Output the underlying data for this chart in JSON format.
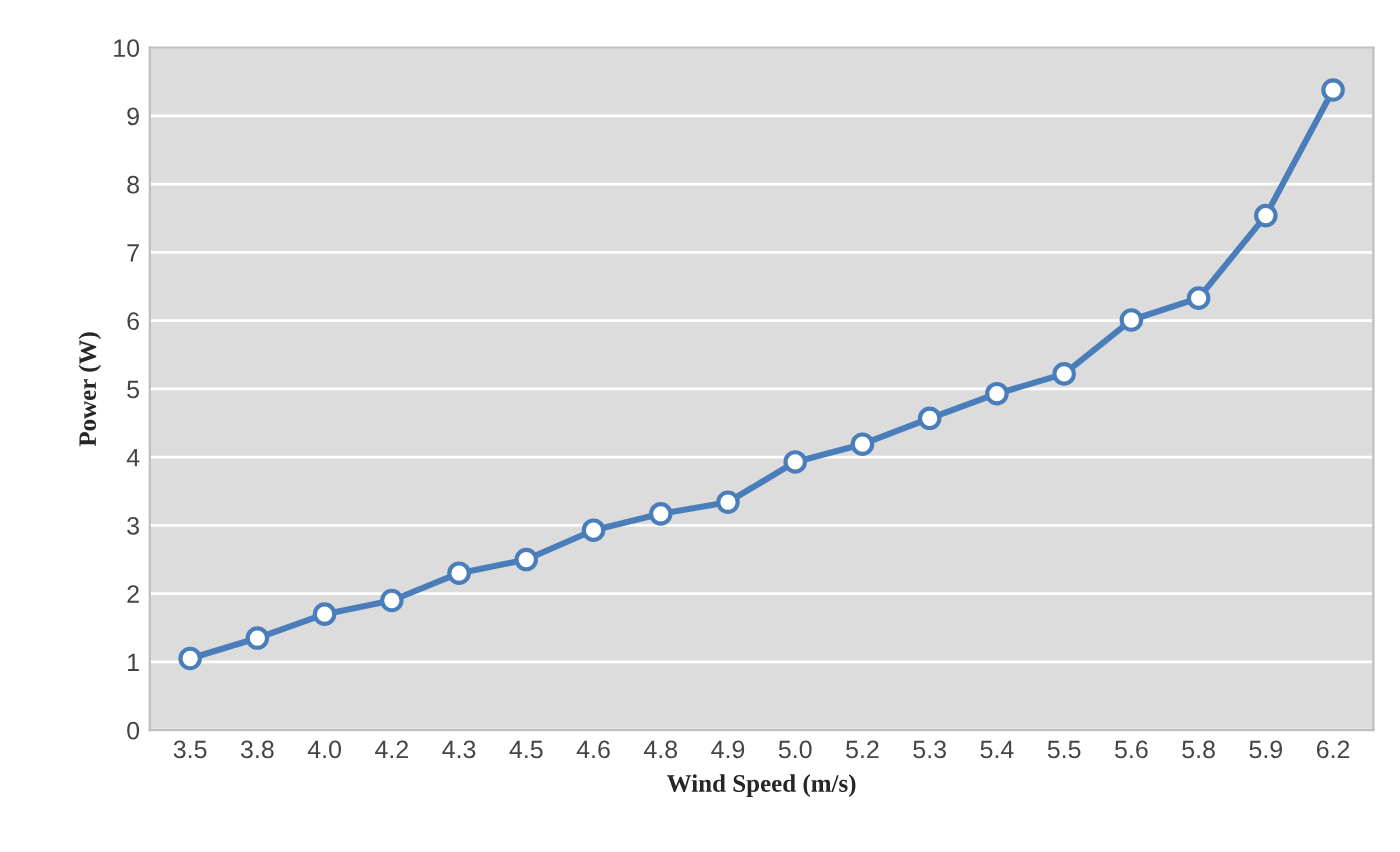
{
  "chart_data": {
    "type": "line",
    "xlabel": "Wind Speed (m/s)",
    "ylabel": "Power (W)",
    "categories": [
      "3.5",
      "3.8",
      "4.0",
      "4.2",
      "4.3",
      "4.5",
      "4.6",
      "4.8",
      "4.9",
      "5.0",
      "5.2",
      "5.3",
      "5.4",
      "5.5",
      "5.6",
      "5.8",
      "5.9",
      "6.2"
    ],
    "series": [
      {
        "color": "#4a7ebb",
        "values": [
          1.05,
          1.35,
          1.7,
          1.9,
          2.3,
          2.5,
          2.93,
          3.17,
          3.34,
          3.93,
          4.19,
          4.57,
          4.93,
          5.22,
          6.01,
          6.33,
          7.54,
          9.38
        ]
      }
    ],
    "ylim": [
      0,
      10
    ],
    "yticks": [
      0,
      1,
      2,
      3,
      4,
      5,
      6,
      7,
      8,
      9,
      10
    ],
    "grid": "y",
    "marker": "circle",
    "line_style": "solid",
    "legend": false
  }
}
